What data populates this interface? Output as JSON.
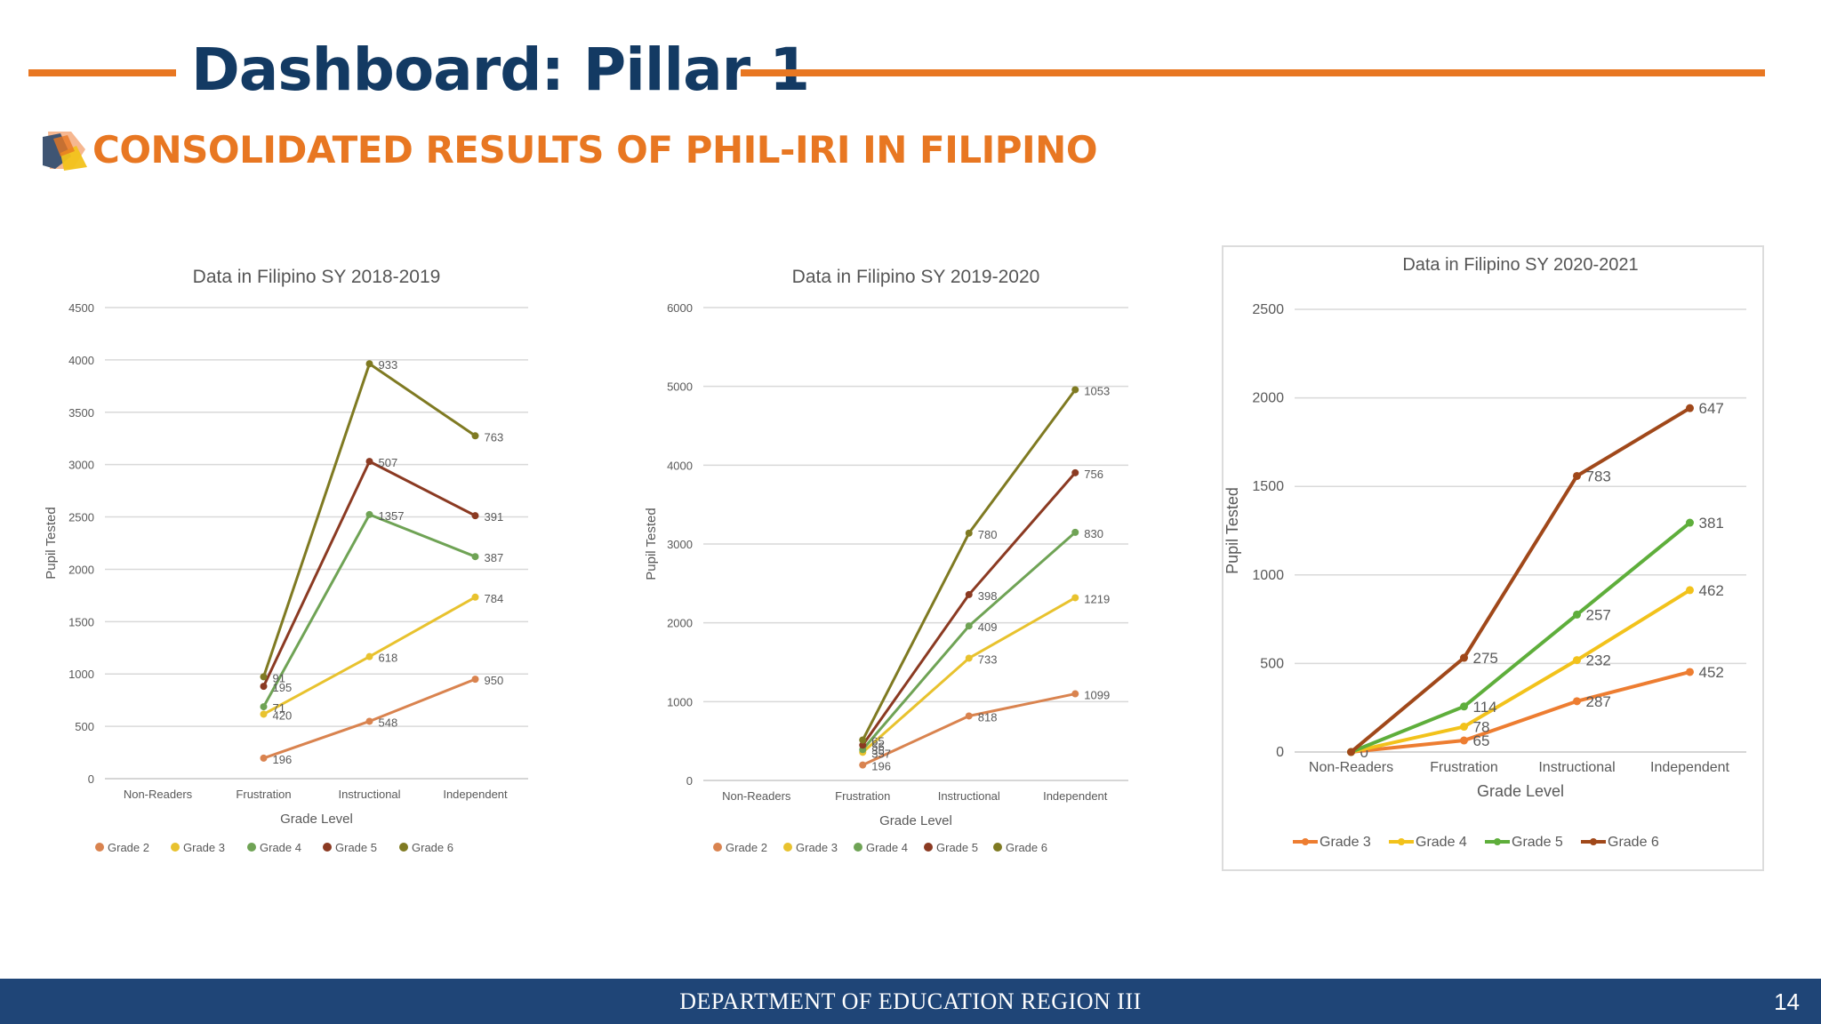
{
  "header": {
    "title": "Dashboard: Pillar 1",
    "subtitle": "CONSOLIDATED RESULTS OF PHIL-IRI IN FILIPINO",
    "accent_color": "#e87722",
    "title_color": "#133a63",
    "logo_icon": "layered-shapes-logo"
  },
  "footer": {
    "text": "DEPARTMENT OF EDUCATION REGION III",
    "page_number": "14",
    "background_color": "#1f4577"
  },
  "chart_data": [
    {
      "type": "line",
      "title": "Data in Filipino SY 2018-2019",
      "xlabel": "Grade Level",
      "ylabel": "Pupil Tested",
      "categories": [
        "Non-Readers",
        "Frustration",
        "Instructional",
        "Independent"
      ],
      "ylim": [
        0,
        4500
      ],
      "yticks": [
        0,
        500,
        1000,
        1500,
        2000,
        2500,
        3000,
        3500,
        4000,
        4500
      ],
      "legend_position": "bottom",
      "grid": true,
      "series": [
        {
          "name": "Grade 2",
          "color": "#d9834f",
          "values": [
            null,
            196,
            548,
            950
          ],
          "labels": [
            "",
            "196",
            "548",
            "950"
          ]
        },
        {
          "name": "Grade 3",
          "color": "#e8c22e",
          "values": [
            null,
            616,
            1166,
            1734
          ],
          "labels": [
            "",
            "420",
            "618",
            "784"
          ]
        },
        {
          "name": "Grade 4",
          "color": "#6fa355",
          "values": [
            null,
            687,
            2523,
            2121
          ],
          "labels": [
            "",
            "71",
            "1357",
            "387"
          ]
        },
        {
          "name": "Grade 5",
          "color": "#8b3a22",
          "values": [
            null,
            882,
            3030,
            2512
          ],
          "labels": [
            "",
            "195",
            "507",
            "391"
          ]
        },
        {
          "name": "Grade 6",
          "color": "#7f7a22",
          "values": [
            null,
            973,
            3963,
            3275
          ],
          "labels": [
            "",
            "91",
            "933",
            "763"
          ]
        }
      ]
    },
    {
      "type": "line",
      "title": "Data in Filipino SY 2019-2020",
      "xlabel": "Grade Level",
      "ylabel": "Pupil Tested",
      "categories": [
        "Non-Readers",
        "Frustration",
        "Instructional",
        "Independent"
      ],
      "ylim": [
        0,
        6000
      ],
      "yticks": [
        0,
        1000,
        2000,
        3000,
        4000,
        5000,
        6000
      ],
      "legend_position": "bottom",
      "grid": true,
      "series": [
        {
          "name": "Grade 2",
          "color": "#d9834f",
          "values": [
            null,
            196,
            818,
            1099
          ],
          "labels": [
            "",
            "196",
            "818",
            "1099"
          ]
        },
        {
          "name": "Grade 3",
          "color": "#e8c22e",
          "values": [
            null,
            357,
            1551,
            2318
          ],
          "labels": [
            "",
            "357",
            "733",
            "1219"
          ]
        },
        {
          "name": "Grade 4",
          "color": "#6fa355",
          "values": [
            null,
            392,
            1960,
            3148
          ],
          "labels": [
            "",
            "35",
            "409",
            "830"
          ]
        },
        {
          "name": "Grade 5",
          "color": "#8b3a22",
          "values": [
            null,
            448,
            2358,
            3904
          ],
          "labels": [
            "",
            "56",
            "398",
            "756"
          ]
        },
        {
          "name": "Grade 6",
          "color": "#7f7a22",
          "values": [
            null,
            513,
            3138,
            4957
          ],
          "labels": [
            "",
            "65",
            "780",
            "1053"
          ]
        }
      ]
    },
    {
      "type": "line",
      "title": "Data in Filipino SY 2020-2021",
      "xlabel": "Grade Level",
      "ylabel": "Pupil Tested",
      "categories": [
        "Non-Readers",
        "Frustration",
        "Instructional",
        "Independent"
      ],
      "ylim": [
        0,
        2500
      ],
      "yticks": [
        0,
        500,
        1000,
        1500,
        2000,
        2500
      ],
      "legend_position": "bottom",
      "grid": true,
      "series": [
        {
          "name": "Grade 3",
          "color": "#ed7d31",
          "values": [
            0,
            65,
            287,
            452
          ],
          "labels": [
            "0",
            "65",
            "287",
            "452"
          ]
        },
        {
          "name": "Grade 4",
          "color": "#f2c21b",
          "values": [
            0,
            143,
            519,
            914
          ],
          "labels": [
            "",
            "78",
            "232",
            "462"
          ]
        },
        {
          "name": "Grade 5",
          "color": "#5eae3b",
          "values": [
            0,
            257,
            776,
            1295
          ],
          "labels": [
            "",
            "114",
            "257",
            "381"
          ]
        },
        {
          "name": "Grade 6",
          "color": "#a0481a",
          "values": [
            0,
            532,
            1559,
            1942
          ],
          "labels": [
            "",
            "275",
            "783",
            "647"
          ]
        }
      ]
    }
  ]
}
